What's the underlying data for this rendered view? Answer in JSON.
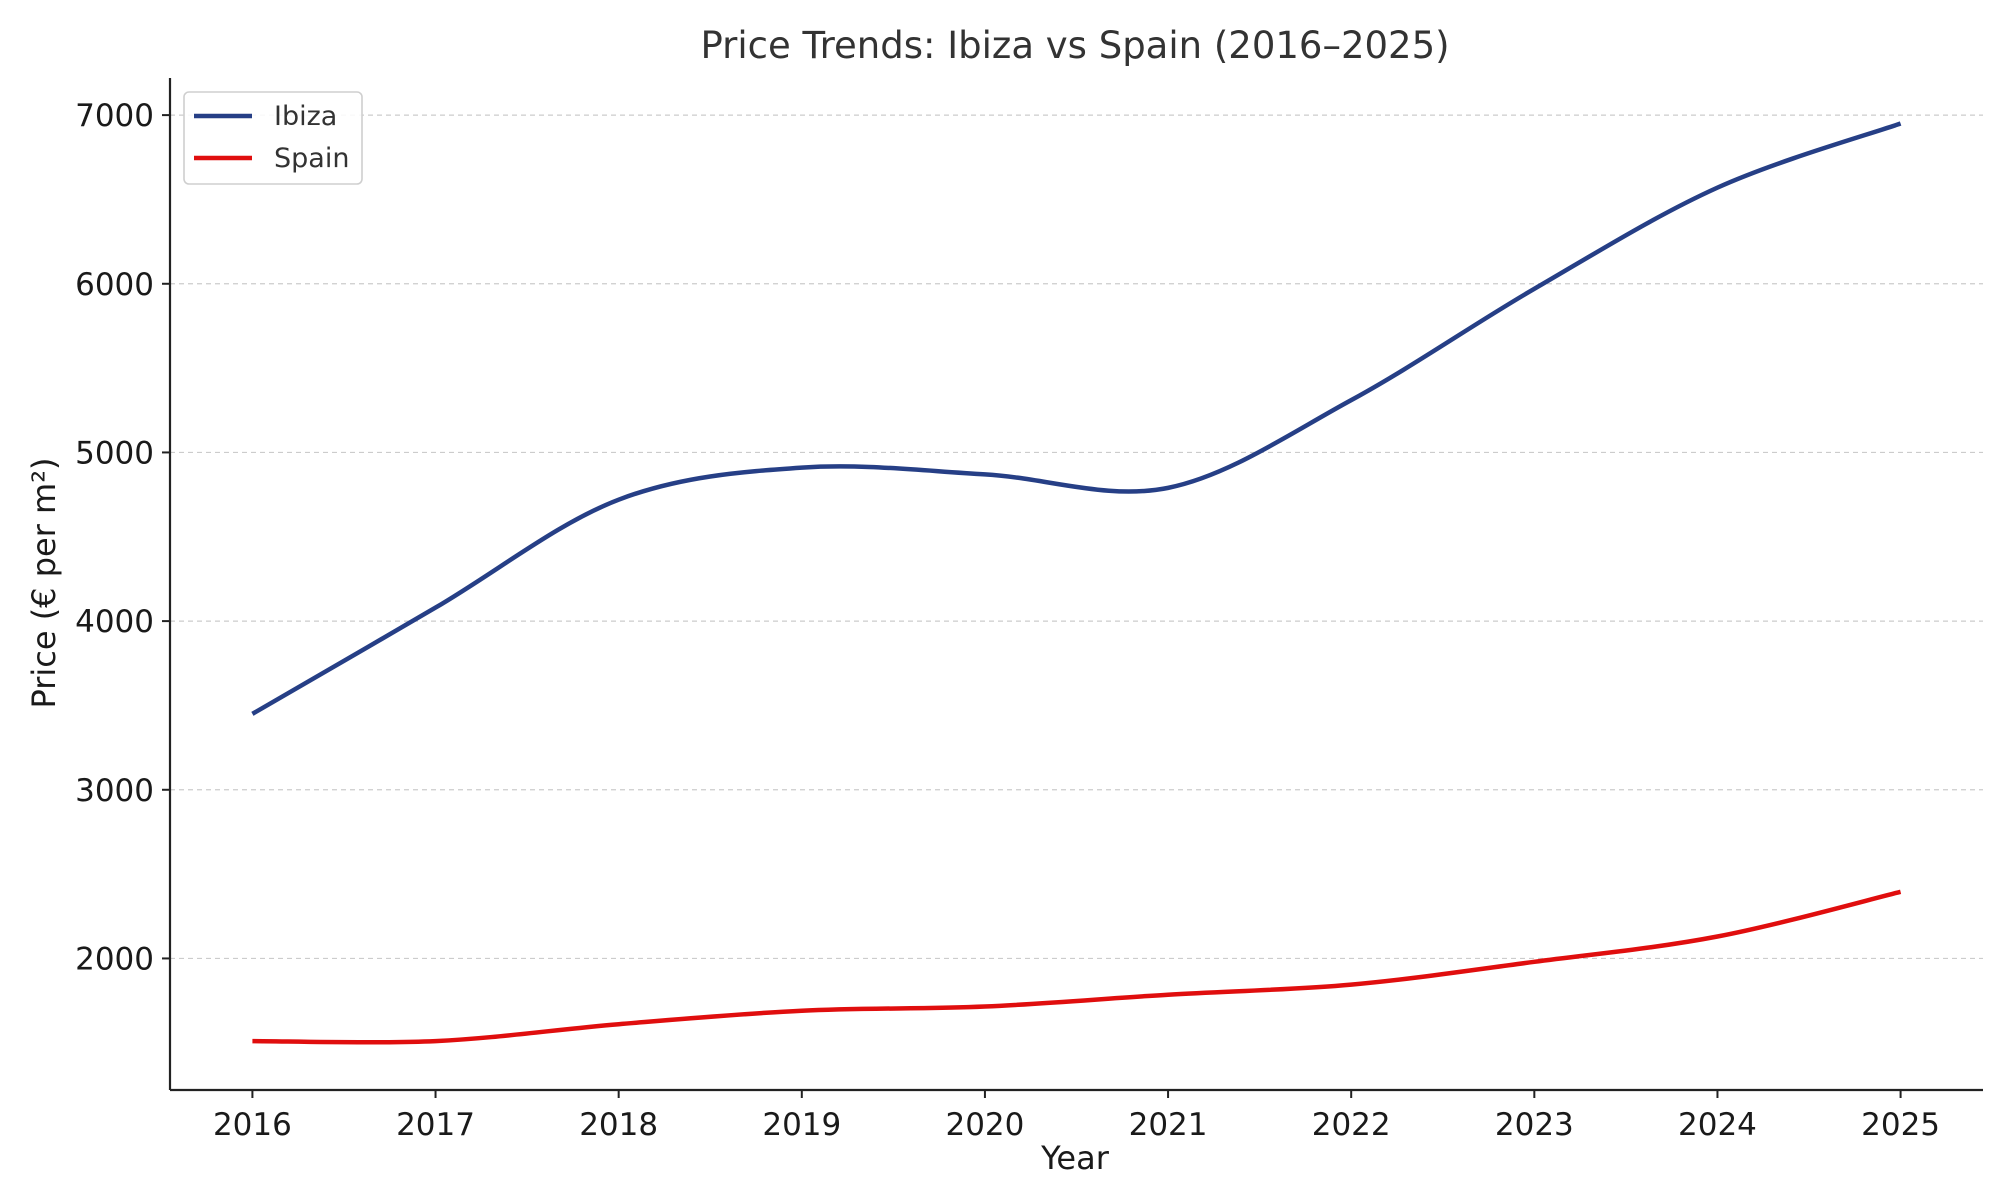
{
  "chart_data": {
    "type": "line",
    "title": "Price Trends: Ibiza vs Spain (2016–2025)",
    "xlabel": "Year",
    "ylabel": "Price (€ per m²)",
    "x": [
      2016,
      2017,
      2018,
      2019,
      2020,
      2021,
      2022,
      2023,
      2024,
      2025
    ],
    "x_tick_labels": [
      "2016",
      "2017",
      "2018",
      "2019",
      "2020",
      "2021",
      "2022",
      "2023",
      "2024",
      "2025"
    ],
    "y_ticks": [
      2000,
      3000,
      4000,
      5000,
      6000,
      7000
    ],
    "y_tick_labels": [
      "2000",
      "3000",
      "4000",
      "5000",
      "6000",
      "7000"
    ],
    "xlim": [
      2015.55,
      2025.45
    ],
    "ylim": [
      1220,
      7220
    ],
    "grid": "horizontal dashed",
    "legend_position": "top-left",
    "series": [
      {
        "name": "Ibiza",
        "color": "#263f86",
        "values": [
          3450,
          4080,
          4720,
          4910,
          4870,
          4790,
          5310,
          5970,
          6570,
          6950
        ]
      },
      {
        "name": "Spain",
        "color": "#e00e0e",
        "values": [
          1510,
          1510,
          1610,
          1690,
          1715,
          1785,
          1845,
          1980,
          2130,
          2395
        ]
      }
    ]
  }
}
